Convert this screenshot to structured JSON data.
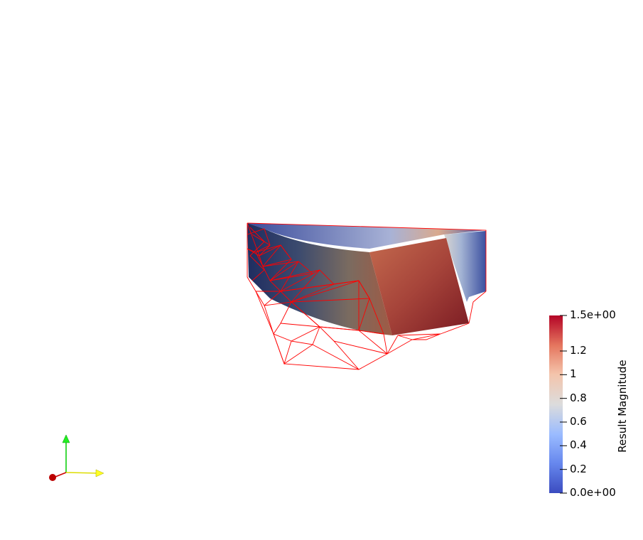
{
  "colorbar": {
    "title": "Result Magnitude",
    "ticks": [
      {
        "label": "1.5e+00",
        "value": 1.5
      },
      {
        "label": "1.2",
        "value": 1.2
      },
      {
        "label": "1",
        "value": 1.0
      },
      {
        "label": "0.8",
        "value": 0.8
      },
      {
        "label": "0.6",
        "value": 0.6
      },
      {
        "label": "0.4",
        "value": 0.4
      },
      {
        "label": "0.2",
        "value": 0.2
      },
      {
        "label": "0.0e+00",
        "value": 0.0
      }
    ],
    "range": [
      0.0,
      1.5
    ],
    "colormap": [
      "#3b4cc0",
      "#7b9ff9",
      "#c0d4f5",
      "#dddddd",
      "#f2cbb7",
      "#ee8468",
      "#b40426"
    ]
  },
  "scene": {
    "mesh_color": "#ff0000",
    "background": "#ffffff"
  },
  "axes": {
    "x_color": "#ffff00",
    "y_color": "#00dd00",
    "z_color": "#cc0000"
  }
}
